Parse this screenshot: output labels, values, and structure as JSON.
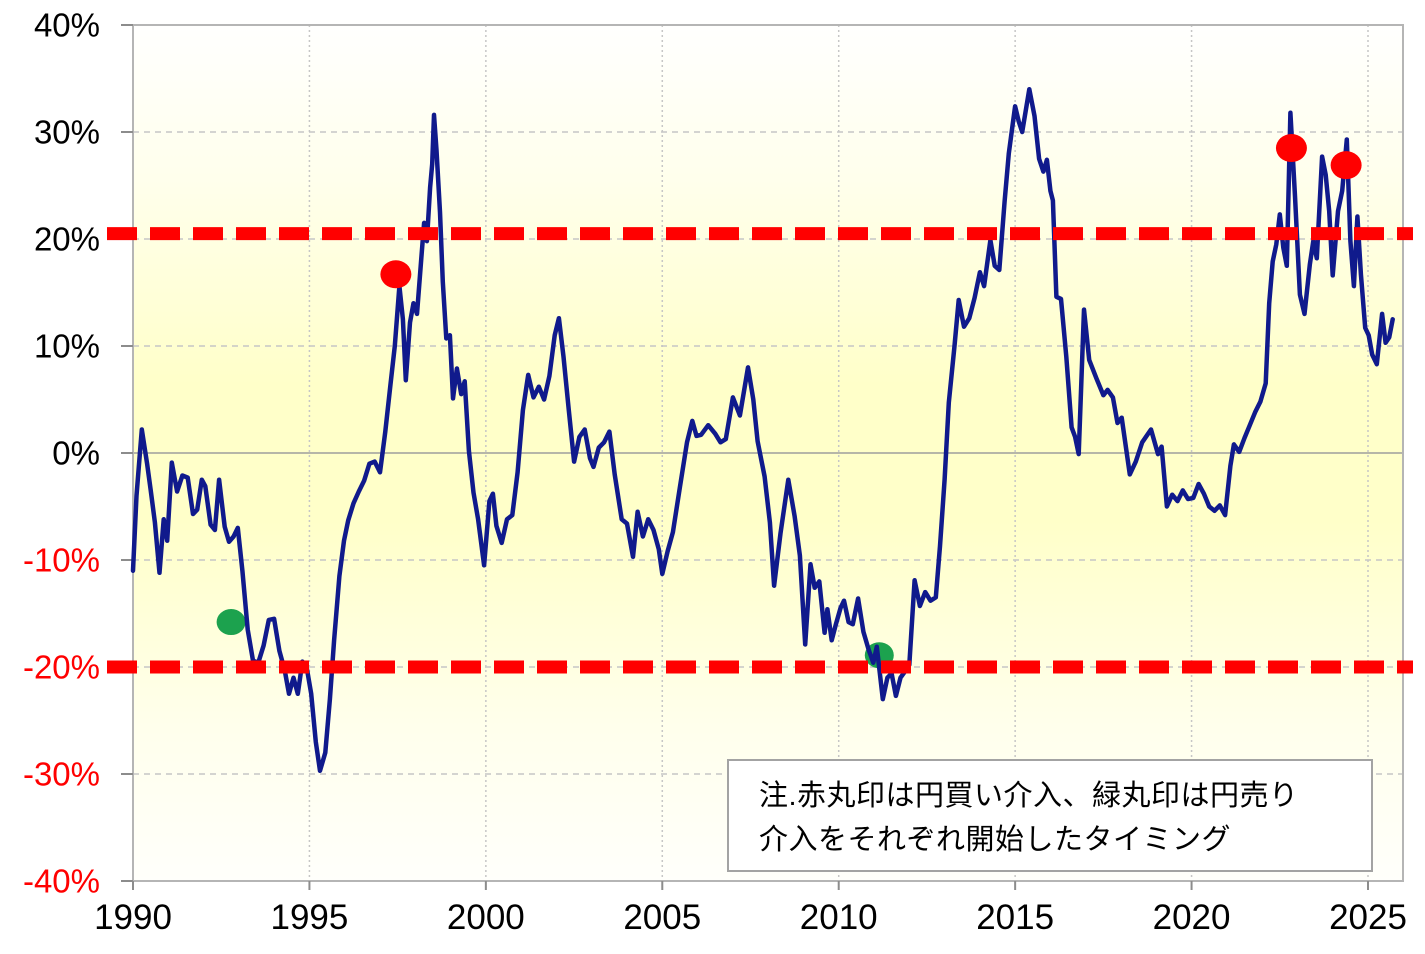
{
  "note": {
    "line1": "注.赤丸印は円買い介入、緑丸印は円売り",
    "line2": "介入をそれぞれ開始したタイミング"
  },
  "chart_data": {
    "type": "line",
    "title": "",
    "xlabel": "",
    "ylabel": "",
    "grid": true,
    "legend_position": "none",
    "x_axis": {
      "range": [
        1990,
        2026.0
      ],
      "ticks": [
        1990,
        1995,
        2000,
        2005,
        2010,
        2015,
        2020,
        2025
      ]
    },
    "y_axis": {
      "range": [
        -40,
        40
      ],
      "unit": "%",
      "labels": [
        {
          "text": "40%",
          "value": 40,
          "color": "#000000"
        },
        {
          "text": "30%",
          "value": 30,
          "color": "#000000"
        },
        {
          "text": "20%",
          "value": 20,
          "color": "#000000"
        },
        {
          "text": "10%",
          "value": 10,
          "color": "#000000"
        },
        {
          "text": "0%",
          "value": 0,
          "color": "#000000"
        },
        {
          "text": "-10%",
          "value": -10,
          "color": "#FF0000"
        },
        {
          "text": "-20%",
          "value": -20,
          "color": "#FF0000"
        },
        {
          "text": "-30%",
          "value": -30,
          "color": "#FF0000"
        },
        {
          "text": "-40%",
          "value": -40,
          "color": "#FF0000"
        }
      ]
    },
    "reference_lines": [
      {
        "name": "upper-threshold",
        "nominal": "+20%",
        "value": 20.5,
        "color": "#FF0000",
        "style": "dashed"
      },
      {
        "name": "lower-threshold",
        "nominal": "-20%",
        "value": -20.0,
        "color": "#FF0000",
        "style": "dashed"
      }
    ],
    "markers": {
      "red": {
        "meaning": "円買い介入開始",
        "color": "#FF0000",
        "points": [
          [
            1997.45,
            16.7
          ],
          [
            2022.83,
            28.5
          ],
          [
            2024.38,
            26.9
          ]
        ]
      },
      "green": {
        "meaning": "円売り介入開始",
        "color": "#1CA24E",
        "points": [
          [
            1992.78,
            -15.8
          ],
          [
            2011.15,
            -18.9
          ]
        ]
      }
    },
    "series": [
      {
        "name": "yen-deviation",
        "color": "#101A8C",
        "points": [
          [
            1990.0,
            -11.0
          ],
          [
            1990.1,
            -4.0
          ],
          [
            1990.25,
            2.2
          ],
          [
            1990.4,
            -1.0
          ],
          [
            1990.5,
            -3.4
          ],
          [
            1990.62,
            -6.5
          ],
          [
            1990.75,
            -11.2
          ],
          [
            1990.87,
            -6.2
          ],
          [
            1990.97,
            -8.2
          ],
          [
            1991.1,
            -0.9
          ],
          [
            1991.25,
            -3.6
          ],
          [
            1991.4,
            -2.1
          ],
          [
            1991.55,
            -2.3
          ],
          [
            1991.7,
            -5.7
          ],
          [
            1991.82,
            -5.3
          ],
          [
            1991.95,
            -2.5
          ],
          [
            1992.05,
            -3.1
          ],
          [
            1992.2,
            -6.7
          ],
          [
            1992.32,
            -7.2
          ],
          [
            1992.44,
            -2.5
          ],
          [
            1992.6,
            -6.9
          ],
          [
            1992.72,
            -8.3
          ],
          [
            1992.85,
            -7.8
          ],
          [
            1992.97,
            -7.0
          ],
          [
            1993.1,
            -11.0
          ],
          [
            1993.25,
            -16.5
          ],
          [
            1993.4,
            -19.4
          ],
          [
            1993.55,
            -19.6
          ],
          [
            1993.7,
            -18.0
          ],
          [
            1993.85,
            -15.6
          ],
          [
            1994.0,
            -15.5
          ],
          [
            1994.15,
            -18.5
          ],
          [
            1994.3,
            -20.3
          ],
          [
            1994.42,
            -22.5
          ],
          [
            1994.55,
            -21.0
          ],
          [
            1994.67,
            -22.5
          ],
          [
            1994.8,
            -19.5
          ],
          [
            1994.92,
            -20.0
          ],
          [
            1995.05,
            -22.5
          ],
          [
            1995.18,
            -27.0
          ],
          [
            1995.3,
            -29.7
          ],
          [
            1995.45,
            -28.0
          ],
          [
            1995.58,
            -23.0
          ],
          [
            1995.7,
            -17.5
          ],
          [
            1995.85,
            -11.5
          ],
          [
            1995.98,
            -8.2
          ],
          [
            1996.1,
            -6.3
          ],
          [
            1996.25,
            -4.7
          ],
          [
            1996.4,
            -3.6
          ],
          [
            1996.55,
            -2.6
          ],
          [
            1996.7,
            -1.0
          ],
          [
            1996.85,
            -0.8
          ],
          [
            1997.0,
            -1.8
          ],
          [
            1997.15,
            2.0
          ],
          [
            1997.3,
            6.5
          ],
          [
            1997.42,
            10.0
          ],
          [
            1997.55,
            15.6
          ],
          [
            1997.65,
            12.5
          ],
          [
            1997.73,
            6.8
          ],
          [
            1997.85,
            12.2
          ],
          [
            1997.95,
            14.0
          ],
          [
            1998.05,
            13.0
          ],
          [
            1998.17,
            18.2
          ],
          [
            1998.25,
            21.5
          ],
          [
            1998.33,
            19.8
          ],
          [
            1998.42,
            24.8
          ],
          [
            1998.48,
            27.0
          ],
          [
            1998.53,
            31.6
          ],
          [
            1998.6,
            28.3
          ],
          [
            1998.7,
            22.5
          ],
          [
            1998.78,
            16.0
          ],
          [
            1998.88,
            10.7
          ],
          [
            1998.98,
            11.0
          ],
          [
            1999.07,
            5.1
          ],
          [
            1999.18,
            7.9
          ],
          [
            1999.3,
            5.5
          ],
          [
            1999.4,
            6.7
          ],
          [
            1999.52,
            0.2
          ],
          [
            1999.65,
            -3.7
          ],
          [
            1999.78,
            -6.2
          ],
          [
            1999.95,
            -10.5
          ],
          [
            2000.1,
            -4.5
          ],
          [
            2000.2,
            -3.8
          ],
          [
            2000.3,
            -6.8
          ],
          [
            2000.45,
            -8.4
          ],
          [
            2000.6,
            -6.2
          ],
          [
            2000.75,
            -5.8
          ],
          [
            2000.9,
            -1.8
          ],
          [
            2001.05,
            4.0
          ],
          [
            2001.2,
            7.3
          ],
          [
            2001.35,
            5.2
          ],
          [
            2001.5,
            6.2
          ],
          [
            2001.65,
            5.0
          ],
          [
            2001.8,
            7.2
          ],
          [
            2001.95,
            11.0
          ],
          [
            2002.07,
            12.6
          ],
          [
            2002.2,
            9.0
          ],
          [
            2002.35,
            4.0
          ],
          [
            2002.5,
            -0.8
          ],
          [
            2002.65,
            1.5
          ],
          [
            2002.8,
            2.2
          ],
          [
            2002.95,
            -0.5
          ],
          [
            2003.05,
            -1.3
          ],
          [
            2003.2,
            0.5
          ],
          [
            2003.35,
            1.0
          ],
          [
            2003.5,
            2.0
          ],
          [
            2003.65,
            -2.0
          ],
          [
            2003.85,
            -6.2
          ],
          [
            2004.0,
            -6.6
          ],
          [
            2004.17,
            -9.7
          ],
          [
            2004.3,
            -5.5
          ],
          [
            2004.45,
            -7.8
          ],
          [
            2004.6,
            -6.2
          ],
          [
            2004.75,
            -7.2
          ],
          [
            2004.9,
            -9.0
          ],
          [
            2005.0,
            -11.3
          ],
          [
            2005.15,
            -9.2
          ],
          [
            2005.3,
            -7.4
          ],
          [
            2005.5,
            -3.2
          ],
          [
            2005.7,
            1.0
          ],
          [
            2005.85,
            3.0
          ],
          [
            2005.97,
            1.6
          ],
          [
            2006.1,
            1.7
          ],
          [
            2006.3,
            2.6
          ],
          [
            2006.5,
            1.8
          ],
          [
            2006.65,
            1.0
          ],
          [
            2006.8,
            1.3
          ],
          [
            2007.0,
            5.2
          ],
          [
            2007.2,
            3.5
          ],
          [
            2007.43,
            8.0
          ],
          [
            2007.58,
            5.0
          ],
          [
            2007.7,
            1.1
          ],
          [
            2007.9,
            -2.2
          ],
          [
            2008.05,
            -6.5
          ],
          [
            2008.17,
            -12.4
          ],
          [
            2008.35,
            -7.5
          ],
          [
            2008.57,
            -2.5
          ],
          [
            2008.75,
            -5.9
          ],
          [
            2008.9,
            -9.6
          ],
          [
            2009.05,
            -17.9
          ],
          [
            2009.2,
            -10.4
          ],
          [
            2009.32,
            -12.6
          ],
          [
            2009.45,
            -12.0
          ],
          [
            2009.6,
            -16.8
          ],
          [
            2009.68,
            -14.6
          ],
          [
            2009.8,
            -17.5
          ],
          [
            2009.92,
            -16.0
          ],
          [
            2010.05,
            -14.5
          ],
          [
            2010.15,
            -13.8
          ],
          [
            2010.28,
            -15.8
          ],
          [
            2010.4,
            -16.0
          ],
          [
            2010.55,
            -13.6
          ],
          [
            2010.7,
            -16.7
          ],
          [
            2010.85,
            -18.4
          ],
          [
            2010.98,
            -19.6
          ],
          [
            2011.08,
            -18.1
          ],
          [
            2011.25,
            -23.0
          ],
          [
            2011.38,
            -21.0
          ],
          [
            2011.5,
            -20.6
          ],
          [
            2011.62,
            -22.7
          ],
          [
            2011.75,
            -21.0
          ],
          [
            2011.88,
            -20.4
          ],
          [
            2012.0,
            -19.8
          ],
          [
            2012.15,
            -11.9
          ],
          [
            2012.3,
            -14.3
          ],
          [
            2012.45,
            -13.0
          ],
          [
            2012.6,
            -13.8
          ],
          [
            2012.75,
            -13.5
          ],
          [
            2012.87,
            -8.7
          ],
          [
            2013.0,
            -2.5
          ],
          [
            2013.12,
            4.7
          ],
          [
            2013.28,
            10.0
          ],
          [
            2013.4,
            14.3
          ],
          [
            2013.55,
            11.8
          ],
          [
            2013.7,
            12.6
          ],
          [
            2013.85,
            14.5
          ],
          [
            2014.0,
            16.9
          ],
          [
            2014.12,
            15.6
          ],
          [
            2014.3,
            19.9
          ],
          [
            2014.42,
            17.5
          ],
          [
            2014.55,
            17.1
          ],
          [
            2014.7,
            23.5
          ],
          [
            2014.82,
            28.0
          ],
          [
            2015.0,
            32.4
          ],
          [
            2015.1,
            31.0
          ],
          [
            2015.2,
            30.0
          ],
          [
            2015.4,
            34.0
          ],
          [
            2015.55,
            31.5
          ],
          [
            2015.68,
            27.5
          ],
          [
            2015.8,
            26.3
          ],
          [
            2015.9,
            27.4
          ],
          [
            2016.0,
            24.5
          ],
          [
            2016.07,
            23.6
          ],
          [
            2016.17,
            14.6
          ],
          [
            2016.3,
            14.4
          ],
          [
            2016.45,
            9.0
          ],
          [
            2016.6,
            2.4
          ],
          [
            2016.7,
            1.5
          ],
          [
            2016.8,
            -0.1
          ],
          [
            2016.95,
            13.4
          ],
          [
            2017.1,
            8.7
          ],
          [
            2017.3,
            7.0
          ],
          [
            2017.5,
            5.4
          ],
          [
            2017.62,
            5.9
          ],
          [
            2017.77,
            5.2
          ],
          [
            2017.9,
            2.8
          ],
          [
            2018.02,
            3.3
          ],
          [
            2018.25,
            -2.0
          ],
          [
            2018.42,
            -0.8
          ],
          [
            2018.6,
            1.0
          ],
          [
            2018.85,
            2.2
          ],
          [
            2019.05,
            -0.1
          ],
          [
            2019.15,
            0.6
          ],
          [
            2019.3,
            -5.0
          ],
          [
            2019.45,
            -3.9
          ],
          [
            2019.6,
            -4.5
          ],
          [
            2019.75,
            -3.5
          ],
          [
            2019.9,
            -4.3
          ],
          [
            2020.05,
            -4.2
          ],
          [
            2020.2,
            -2.9
          ],
          [
            2020.35,
            -3.8
          ],
          [
            2020.5,
            -5.0
          ],
          [
            2020.65,
            -5.4
          ],
          [
            2020.8,
            -4.9
          ],
          [
            2020.95,
            -5.8
          ],
          [
            2021.1,
            -1.2
          ],
          [
            2021.2,
            0.8
          ],
          [
            2021.35,
            0.1
          ],
          [
            2021.5,
            1.4
          ],
          [
            2021.65,
            2.6
          ],
          [
            2021.8,
            3.8
          ],
          [
            2021.95,
            4.8
          ],
          [
            2022.1,
            6.5
          ],
          [
            2022.2,
            14.0
          ],
          [
            2022.3,
            17.9
          ],
          [
            2022.4,
            19.5
          ],
          [
            2022.5,
            22.3
          ],
          [
            2022.6,
            19.2
          ],
          [
            2022.7,
            17.5
          ],
          [
            2022.8,
            31.8
          ],
          [
            2022.93,
            24.0
          ],
          [
            2023.07,
            14.8
          ],
          [
            2023.2,
            13.0
          ],
          [
            2023.35,
            17.6
          ],
          [
            2023.45,
            19.8
          ],
          [
            2023.55,
            18.2
          ],
          [
            2023.7,
            27.7
          ],
          [
            2023.8,
            26.0
          ],
          [
            2023.9,
            22.6
          ],
          [
            2024.0,
            16.6
          ],
          [
            2024.15,
            22.6
          ],
          [
            2024.27,
            24.5
          ],
          [
            2024.4,
            29.3
          ],
          [
            2024.5,
            19.8
          ],
          [
            2024.6,
            15.6
          ],
          [
            2024.7,
            22.1
          ],
          [
            2024.8,
            16.7
          ],
          [
            2024.92,
            11.7
          ],
          [
            2025.02,
            11.0
          ],
          [
            2025.12,
            9.2
          ],
          [
            2025.25,
            8.3
          ],
          [
            2025.4,
            13.0
          ],
          [
            2025.5,
            10.3
          ],
          [
            2025.6,
            10.8
          ],
          [
            2025.7,
            12.5
          ]
        ]
      }
    ]
  },
  "colors": {
    "plot_bg_top": "#FFFFFE",
    "plot_bg_mid": "#FFFFC9",
    "plot_bg_bottom": "#FFFFFB",
    "grid": "#C6C6C6",
    "zero_line": "#9E9E9E",
    "border": "#B5B5B5",
    "tick": "#8C8C8C",
    "line": "#101A8C",
    "threshold": "#FF0000",
    "negative_label": "#FF0000"
  }
}
